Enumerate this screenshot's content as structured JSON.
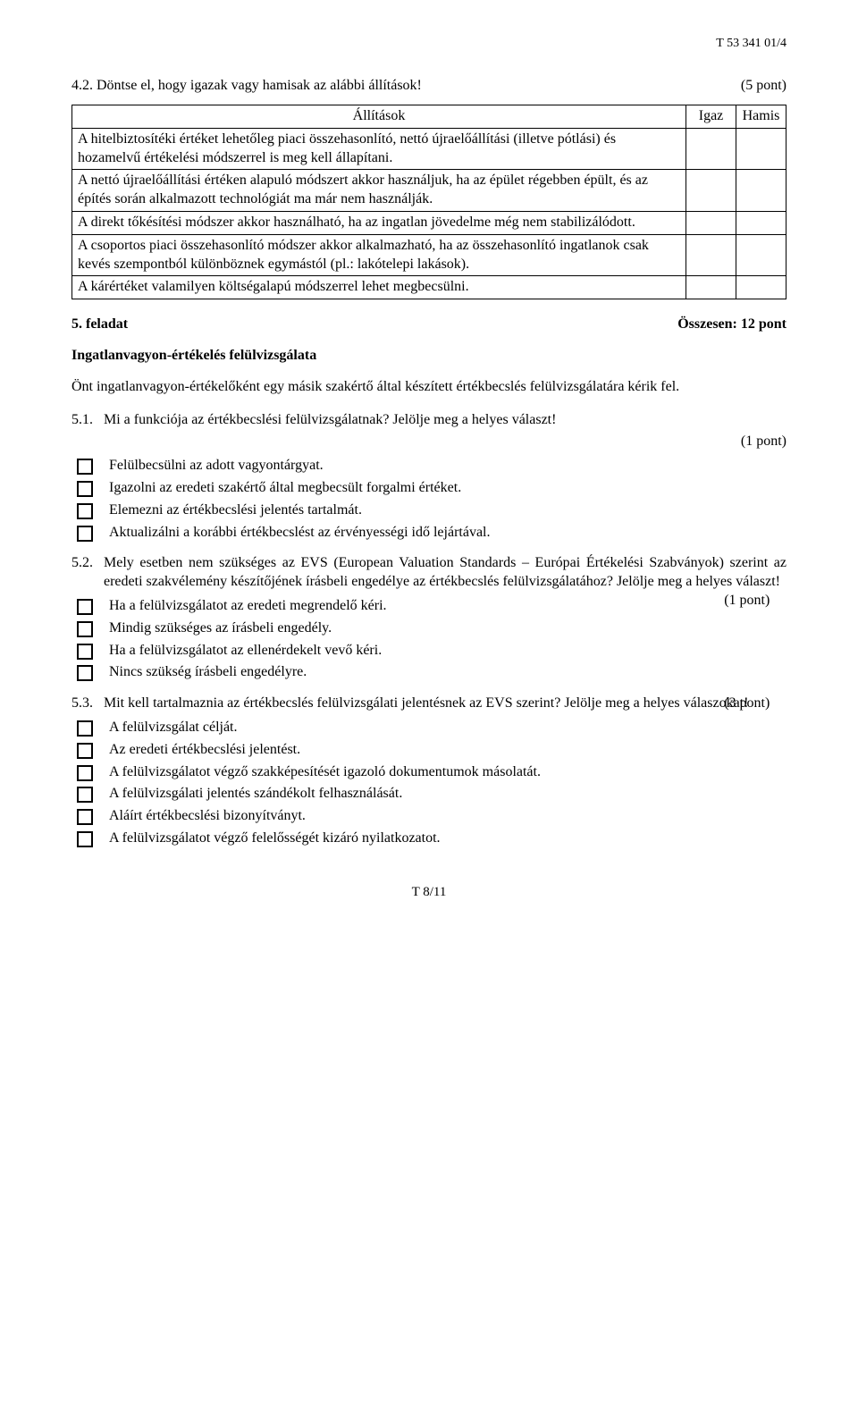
{
  "header_code": "T 53 341 01/4",
  "q42": {
    "prompt": "4.2.  Döntse el, hogy igazak vagy hamisak az alábbi állítások!",
    "points": "(5 pont)",
    "col_statements": "Állítások",
    "col_true": "Igaz",
    "col_false": "Hamis",
    "rows": [
      "A hitelbiztosítéki értéket lehetőleg piaci összehasonlító, nettó újraelőállítási (illetve pótlási) és hozamelvű értékelési módszerrel is meg kell állapítani.",
      "A nettó újraelőállítási értéken alapuló módszert akkor használjuk, ha az épület régebben épült, és az építés során alkalmazott technológiát ma már nem használják.",
      "A direkt tőkésítési módszer akkor használható, ha az ingatlan jövedelme még nem stabilizálódott.",
      "A csoportos piaci összehasonlító módszer akkor alkalmazható, ha az összehasonlító ingatlanok csak kevés szempontból különböznek egymástól (pl.: lakótelepi lakások).",
      "A kárértéket valamilyen költségalapú módszerrel lehet megbecsülni."
    ]
  },
  "task5": {
    "label": "5. feladat",
    "points": "Összesen: 12 pont",
    "subtitle": "Ingatlanvagyon-értékelés felülvizsgálata",
    "intro": "Önt ingatlanvagyon-értékelőként egy másik szakértő által készített értékbecslés felülvizsgálatára kérik fel."
  },
  "q51": {
    "num": "5.1.",
    "text": "Mi a funkciója az értékbecslési felülvizsgálatnak? Jelölje meg a helyes választ!",
    "points": "(1 pont)",
    "options": [
      "Felülbecsülni az adott vagyontárgyat.",
      "Igazolni az eredeti szakértő által megbecsült forgalmi értéket.",
      "Elemezni az értékbecslési jelentés tartalmát.",
      "Aktualizálni a korábbi értékbecslést az érvényességi idő lejártával."
    ]
  },
  "q52": {
    "num": "5.2.",
    "text": "Mely esetben nem szükséges az EVS (European Valuation Standards – Európai Értékelési Szabványok) szerint az eredeti szakvélemény készítőjének írásbeli engedélye az értékbecslés felülvizsgálatához? Jelölje meg a helyes választ!",
    "points": "(1 pont)",
    "options": [
      "Ha a felülvizsgálatot az eredeti megrendelő kéri.",
      "Mindig szükséges az írásbeli engedély.",
      "Ha a felülvizsgálatot az ellenérdekelt vevő kéri.",
      "Nincs szükség írásbeli engedélyre."
    ]
  },
  "q53": {
    "num": "5.3.",
    "text": "Mit kell tartalmaznia az értékbecslés felülvizsgálati jelentésnek az EVS szerint? Jelölje meg a helyes válaszokat!",
    "points": "(3 pont)",
    "options": [
      "A felülvizsgálat célját.",
      "Az eredeti értékbecslési jelentést.",
      "A felülvizsgálatot végző szakképesítését igazoló dokumentumok másolatát.",
      "A felülvizsgálati jelentés szándékolt felhasználását.",
      "Aláírt értékbecslési bizonyítványt.",
      "A felülvizsgálatot végző felelősségét kizáró nyilatkozatot."
    ]
  },
  "footer": "T 8/11"
}
